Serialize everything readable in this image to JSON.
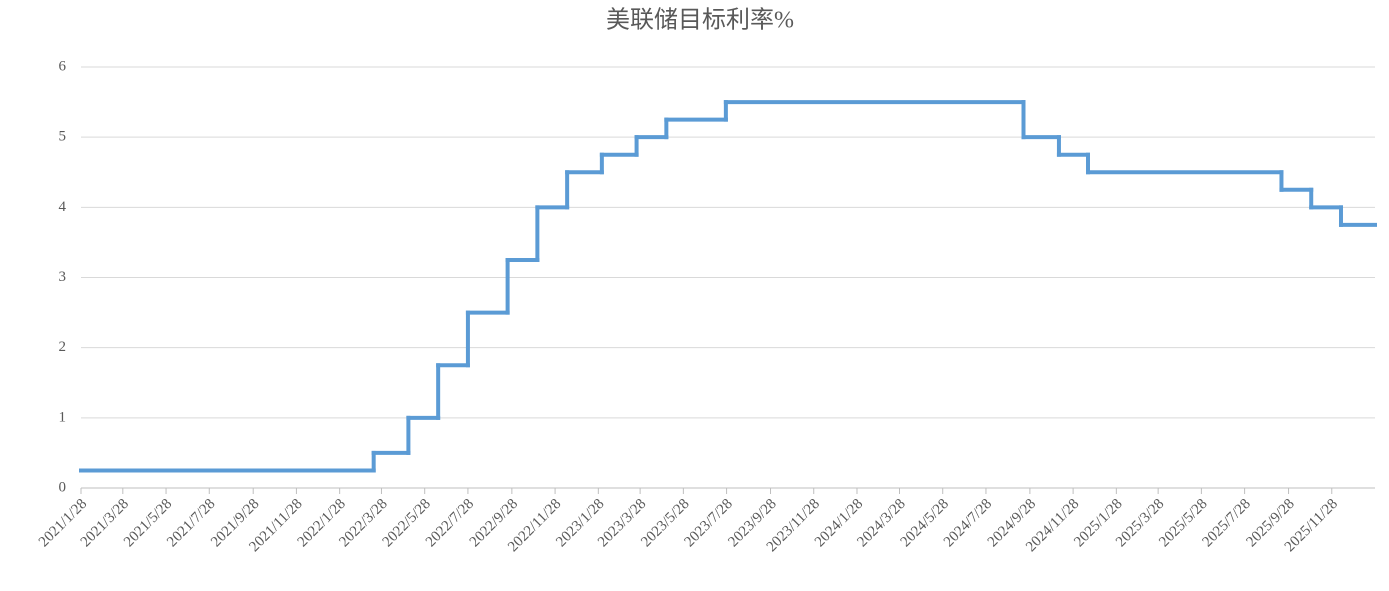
{
  "chart_data": {
    "type": "line",
    "step": "post",
    "title": "美联储目标利率%",
    "x": [
      "2021/1/28",
      "2022/3/17",
      "2022/5/5",
      "2022/6/16",
      "2022/7/28",
      "2022/9/22",
      "2022/11/3",
      "2022/12/15",
      "2023/2/2",
      "2023/3/23",
      "2023/5/4",
      "2023/7/27",
      "2024/9/19",
      "2024/11/8",
      "2024/12/19",
      "2025/9/18",
      "2025/10/30",
      "2025/12/11",
      "2026/1/28"
    ],
    "series": [
      {
        "color": "#5b9bd5",
        "values": [
          0.25,
          0.5,
          1,
          1.75,
          2.5,
          3.25,
          4,
          4.5,
          4.75,
          5,
          5.25,
          5.5,
          5,
          4.75,
          4.5,
          4.25,
          4,
          3.75,
          3.75
        ]
      }
    ],
    "xlim": [
      "2021/1/28",
      "2026/1/28"
    ],
    "xticks": [
      "2021/1/28",
      "2021/3/28",
      "2021/5/28",
      "2021/7/28",
      "2021/9/28",
      "2021/11/28",
      "2022/1/28",
      "2022/3/28",
      "2022/5/28",
      "2022/7/28",
      "2022/9/28",
      "2022/11/28",
      "2023/1/28",
      "2023/3/28",
      "2023/5/28",
      "2023/7/28",
      "2023/9/28",
      "2023/11/28",
      "2024/1/28",
      "2024/3/28",
      "2024/5/28",
      "2024/7/28",
      "2024/9/28",
      "2024/11/28",
      "2025/1/28",
      "2025/3/28",
      "2025/5/28",
      "2025/7/28",
      "2025/9/28",
      "2025/11/28"
    ],
    "ylim": [
      0,
      6
    ],
    "yticks": [
      0,
      1,
      2,
      3,
      4,
      5,
      6
    ],
    "grid": true
  }
}
